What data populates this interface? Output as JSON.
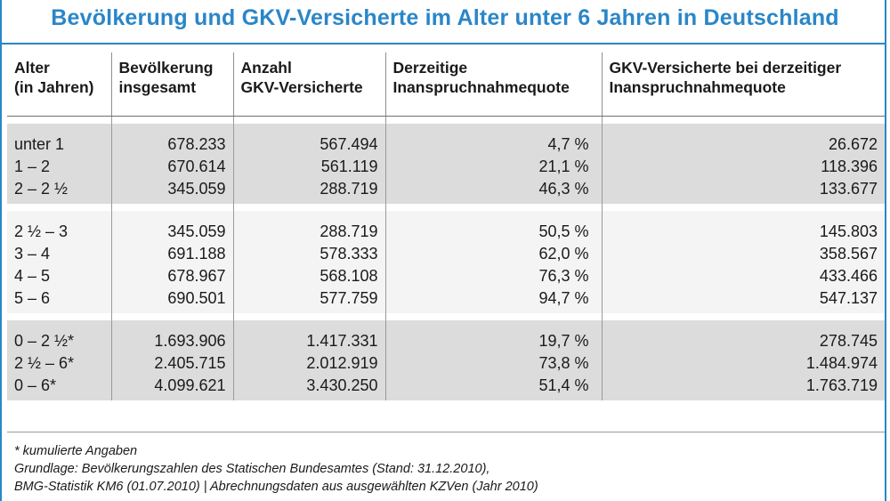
{
  "title": "Bevölkerung und GKV-Versicherte im Alter unter 6 Jahren in Deutschland",
  "accent_color": "#2a86c8",
  "headers": [
    [
      "Alter",
      "(in Jahren)"
    ],
    [
      "Bevölkerung",
      "insgesamt"
    ],
    [
      "Anzahl",
      "GKV-Versicherte"
    ],
    [
      "Derzeitige",
      "Inanspruchnahmequote"
    ],
    [
      "GKV-Versicherte bei derzeitiger",
      "Inanspruchnahmequote"
    ]
  ],
  "groups": [
    {
      "age": [
        "unter 1",
        "1 – 2",
        "2 – 2 ½"
      ],
      "population": [
        "678.233",
        "670.614",
        "345.059"
      ],
      "gkv": [
        "567.494",
        "561.119",
        "288.719"
      ],
      "quota": [
        "4,7 %",
        "21,1 %",
        "46,3 %"
      ],
      "gkv_quota": [
        "26.672",
        "118.396",
        "133.677"
      ]
    },
    {
      "age": [
        "2 ½ – 3",
        "3 – 4",
        "4 – 5",
        "5 – 6"
      ],
      "population": [
        "345.059",
        "691.188",
        "678.967",
        "690.501"
      ],
      "gkv": [
        "288.719",
        "578.333",
        "568.108",
        "577.759"
      ],
      "quota": [
        "50,5 %",
        "62,0 %",
        "76,3 %",
        "94,7 %"
      ],
      "gkv_quota": [
        "145.803",
        "358.567",
        "433.466",
        "547.137"
      ]
    },
    {
      "age": [
        "0 – 2 ½*",
        "2 ½ – 6*",
        "0 – 6*"
      ],
      "population": [
        "1.693.906",
        "2.405.715",
        "4.099.621"
      ],
      "gkv": [
        "1.417.331",
        "2.012.919",
        "3.430.250"
      ],
      "quota": [
        "19,7 %",
        "73,8 %",
        "51,4 %"
      ],
      "gkv_quota": [
        "278.745",
        "1.484.974",
        "1.763.719"
      ]
    }
  ],
  "notes": [
    "* kumulierte Angaben",
    "Grundlage: Bevölkerungszahlen des Statischen Bundesamtes (Stand: 31.12.2010),",
    "BMG-Statistik KM6 (01.07.2010) | Abrechnungsdaten aus ausgewählten KZVen (Jahr 2010)"
  ]
}
